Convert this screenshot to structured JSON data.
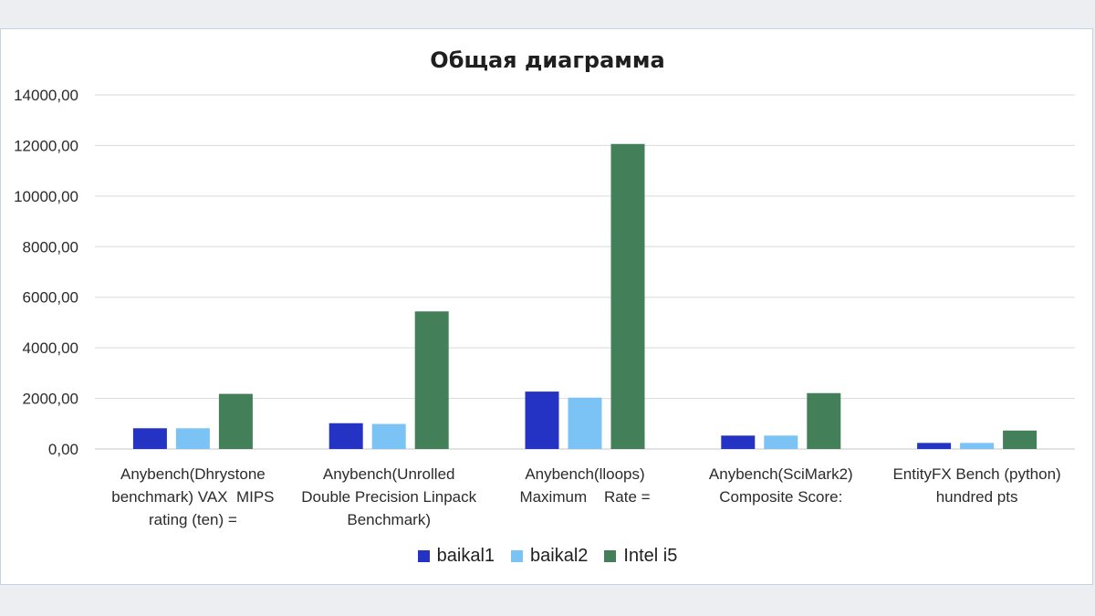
{
  "chart_data": {
    "type": "bar",
    "title": "Общая диаграмма",
    "categories": [
      "Anybench(Dhrystone benchmark) VAX  MIPS rating (ten) =",
      "Anybench(Unrolled Double Precision Linpack Benchmark)",
      "Anybench(lloops) Maximum    Rate =",
      "Anybench(SciMark2) Composite Score:",
      "EntityFX Bench (python) hundred pts"
    ],
    "category_lines": [
      [
        "Anybench(Dhrystone",
        "benchmark) VAX  MIPS",
        "rating (ten) ="
      ],
      [
        "Anybench(Unrolled",
        "Double Precision Linpack",
        "Benchmark)"
      ],
      [
        "Anybench(lloops)",
        "Maximum    Rate ="
      ],
      [
        "Anybench(SciMark2)",
        "Composite Score:"
      ],
      [
        "EntityFX Bench (python)",
        "hundred pts"
      ]
    ],
    "series": [
      {
        "name": "baikal1",
        "color": "#2433c4",
        "values": [
          820,
          1020,
          2270,
          530,
          240
        ]
      },
      {
        "name": "baikal2",
        "color": "#7cc3f5",
        "values": [
          820,
          990,
          2030,
          530,
          240
        ]
      },
      {
        "name": "Intel i5",
        "color": "#43805a",
        "values": [
          2180,
          5440,
          12060,
          2210,
          730
        ]
      }
    ],
    "ylim": [
      0,
      14000
    ],
    "y_ticks": [
      0,
      2000,
      4000,
      6000,
      8000,
      10000,
      12000,
      14000
    ],
    "y_tick_labels": [
      "0,00",
      "2000,00",
      "4000,00",
      "6000,00",
      "8000,00",
      "10000,00",
      "12000,00",
      "14000,00"
    ],
    "grid": true,
    "legend_position": "bottom"
  }
}
